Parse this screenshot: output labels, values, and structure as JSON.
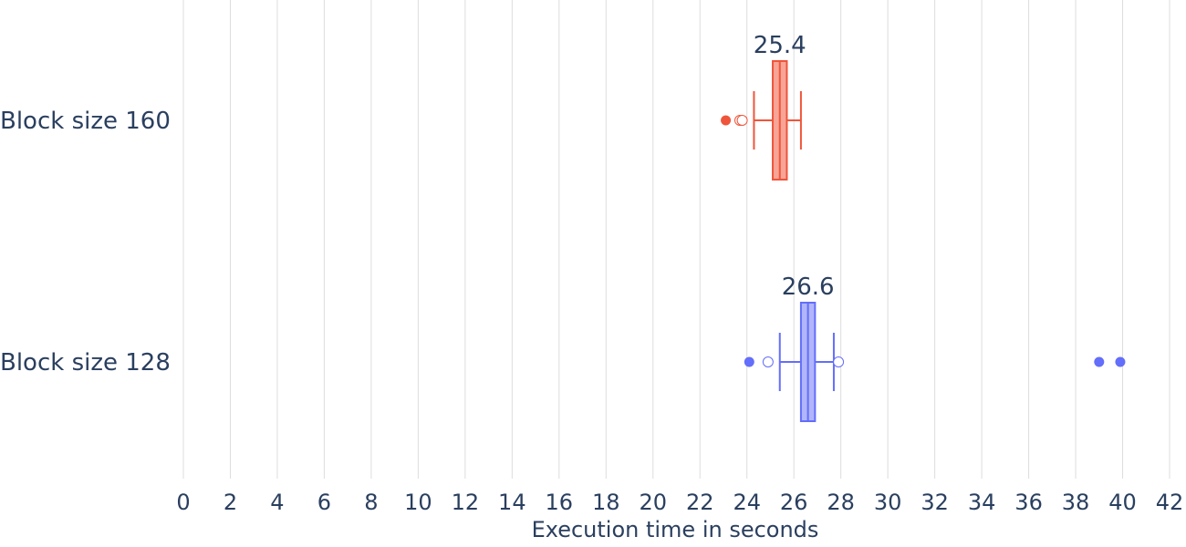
{
  "chart_data": {
    "type": "box",
    "orientation": "horizontal",
    "xlabel": "Execution time in seconds",
    "ylabel": "",
    "xlim": [
      0,
      42
    ],
    "xticks": [
      0,
      2,
      4,
      6,
      8,
      10,
      12,
      14,
      16,
      18,
      20,
      22,
      24,
      26,
      28,
      30,
      32,
      34,
      36,
      38,
      40,
      42
    ],
    "grid": "vertical",
    "series": [
      {
        "category": "Block size 160",
        "color": "#ef553b",
        "fill": "#f7a596",
        "box": {
          "lowerfence": 24.3,
          "q1": 25.1,
          "median": 25.4,
          "q3": 25.7,
          "upperfence": 26.3
        },
        "median_label": "25.4",
        "suspected_outliers": [
          23.7,
          23.8
        ],
        "outliers": [
          23.1
        ]
      },
      {
        "category": "Block size 128",
        "color": "#636efa",
        "fill": "#b1b6fc",
        "box": {
          "lowerfence": 25.4,
          "q1": 26.3,
          "median": 26.6,
          "q3": 26.9,
          "upperfence": 27.7
        },
        "median_label": "26.6",
        "suspected_outliers": [
          24.9,
          27.9
        ],
        "outliers": [
          24.1,
          39.0,
          39.9
        ]
      }
    ]
  }
}
